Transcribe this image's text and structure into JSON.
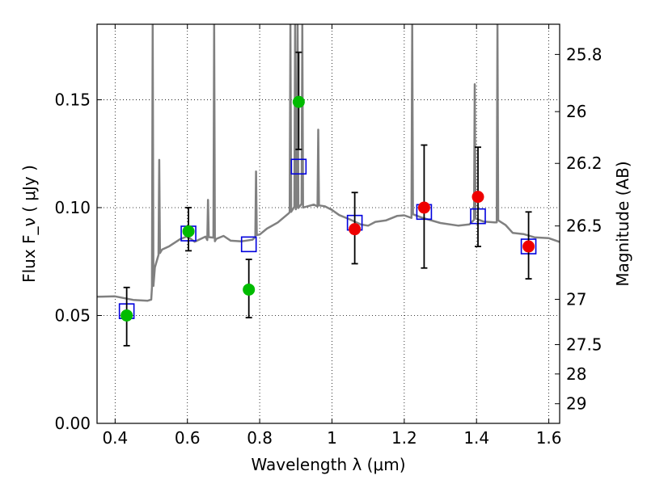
{
  "chart_data": {
    "type": "scatter",
    "xlabel": "Wavelength  λ (μm)",
    "ylabel": "Flux  F_ν  ( μJy )",
    "ylabel_right": "Magnitude (AB)",
    "xlim": [
      0.35,
      1.63
    ],
    "ylim": [
      0.0,
      0.185
    ],
    "grid": true,
    "grid_style": "dotted",
    "x_ticks": [
      0.4,
      0.6,
      0.8,
      1.0,
      1.2,
      1.4,
      1.6
    ],
    "x_tick_labels": [
      "0.4",
      "0.6",
      "0.8",
      "1",
      "1.2",
      "1.4",
      "1.6"
    ],
    "y_ticks": [
      0.0,
      0.05,
      0.1,
      0.15
    ],
    "y_tick_labels": [
      "0.00",
      "0.05",
      "0.10",
      "0.15"
    ],
    "right_ticks": [
      {
        "label": "25.8",
        "flux": 0.171
      },
      {
        "label": "26",
        "flux": 0.1445
      },
      {
        "label": "26.2",
        "flux": 0.1205
      },
      {
        "label": "26.5",
        "flux": 0.0915
      },
      {
        "label": "27",
        "flux": 0.0575
      },
      {
        "label": "27.5",
        "flux": 0.0365
      },
      {
        "label": "28",
        "flux": 0.0229
      },
      {
        "label": "29",
        "flux": 0.0091
      }
    ],
    "colors": {
      "sed": "#808080",
      "model_box": "#0000dd",
      "obs_optical": "#00bb00",
      "obs_nir": "#ee0000",
      "errorbar": "#000000"
    },
    "series": [
      {
        "kind": "line",
        "points": [
          [
            0.35,
            0.058
          ],
          [
            0.4,
            0.058
          ],
          [
            0.45,
            0.057
          ],
          [
            0.49,
            0.056
          ],
          [
            0.5,
            0.058
          ],
          [
            0.51,
            0.072
          ],
          [
            0.52,
            0.078
          ],
          [
            0.53,
            0.081
          ],
          [
            0.55,
            0.083
          ],
          [
            0.58,
            0.085
          ],
          [
            0.6,
            0.087
          ],
          [
            0.62,
            0.085
          ],
          [
            0.65,
            0.086
          ],
          [
            0.68,
            0.085
          ],
          [
            0.7,
            0.086
          ],
          [
            0.72,
            0.084
          ],
          [
            0.75,
            0.084
          ],
          [
            0.78,
            0.086
          ],
          [
            0.8,
            0.088
          ],
          [
            0.82,
            0.09
          ],
          [
            0.85,
            0.094
          ],
          [
            0.88,
            0.097
          ],
          [
            0.9,
            0.1
          ],
          [
            0.92,
            0.101
          ],
          [
            0.95,
            0.101
          ],
          [
            0.98,
            0.1
          ],
          [
            1.0,
            0.098
          ],
          [
            1.02,
            0.096
          ],
          [
            1.05,
            0.094
          ],
          [
            1.08,
            0.093
          ],
          [
            1.1,
            0.092
          ],
          [
            1.12,
            0.093
          ],
          [
            1.15,
            0.095
          ],
          [
            1.18,
            0.096
          ],
          [
            1.2,
            0.097
          ],
          [
            1.25,
            0.095
          ],
          [
            1.3,
            0.092
          ],
          [
            1.35,
            0.091
          ],
          [
            1.38,
            0.093
          ],
          [
            1.4,
            0.095
          ],
          [
            1.42,
            0.093
          ],
          [
            1.45,
            0.094
          ],
          [
            1.48,
            0.092
          ],
          [
            1.5,
            0.089
          ],
          [
            1.53,
            0.087
          ],
          [
            1.56,
            0.086
          ],
          [
            1.6,
            0.085
          ],
          [
            1.63,
            0.084
          ]
        ],
        "emission_lines": [
          {
            "x": 0.504,
            "peak": 0.185
          },
          {
            "x": 0.522,
            "peak": 0.123
          },
          {
            "x": 0.657,
            "peak": 0.103
          },
          {
            "x": 0.674,
            "peak": 0.185
          },
          {
            "x": 0.79,
            "peak": 0.116
          },
          {
            "x": 0.885,
            "peak": 0.185
          },
          {
            "x": 0.898,
            "peak": 0.185
          },
          {
            "x": 0.905,
            "peak": 0.185
          },
          {
            "x": 0.918,
            "peak": 0.185
          },
          {
            "x": 0.962,
            "peak": 0.137
          },
          {
            "x": 1.222,
            "peak": 0.185
          },
          {
            "x": 1.395,
            "peak": 0.158
          },
          {
            "x": 1.458,
            "peak": 0.185
          }
        ]
      },
      {
        "kind": "model_flux_boxes",
        "points": [
          {
            "x": 0.432,
            "y": 0.052
          },
          {
            "x": 0.603,
            "y": 0.088
          },
          {
            "x": 0.77,
            "y": 0.083
          },
          {
            "x": 0.908,
            "y": 0.119
          },
          {
            "x": 1.063,
            "y": 0.093
          },
          {
            "x": 1.255,
            "y": 0.098
          },
          {
            "x": 1.404,
            "y": 0.096
          },
          {
            "x": 1.544,
            "y": 0.082
          }
        ]
      },
      {
        "kind": "observed_points",
        "points": [
          {
            "x": 0.432,
            "y": 0.05,
            "err_low": 0.036,
            "err_high": 0.063,
            "band": "optical"
          },
          {
            "x": 0.603,
            "y": 0.089,
            "err_low": 0.08,
            "err_high": 0.1,
            "band": "optical"
          },
          {
            "x": 0.77,
            "y": 0.062,
            "err_low": 0.049,
            "err_high": 0.076,
            "band": "optical"
          },
          {
            "x": 0.908,
            "y": 0.149,
            "err_low": 0.127,
            "err_high": 0.172,
            "band": "optical"
          },
          {
            "x": 1.063,
            "y": 0.09,
            "err_low": 0.074,
            "err_high": 0.107,
            "band": "nir"
          },
          {
            "x": 1.255,
            "y": 0.1,
            "err_low": 0.072,
            "err_high": 0.129,
            "band": "nir"
          },
          {
            "x": 1.404,
            "y": 0.105,
            "err_low": 0.082,
            "err_high": 0.128,
            "band": "nir"
          },
          {
            "x": 1.544,
            "y": 0.082,
            "err_low": 0.067,
            "err_high": 0.098,
            "band": "nir"
          }
        ]
      }
    ]
  }
}
